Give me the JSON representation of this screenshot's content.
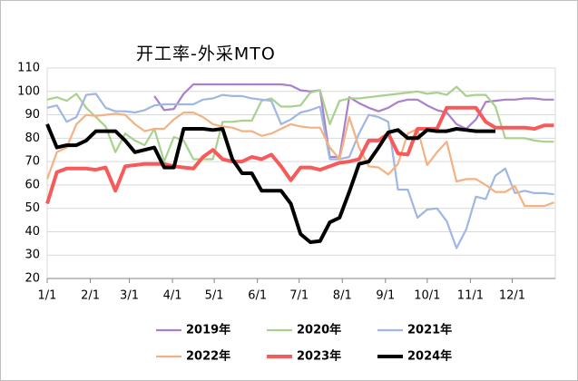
{
  "chart_data": {
    "type": "line",
    "title": "开工率-外采MTO",
    "x": [
      0,
      7,
      14,
      21,
      28,
      35,
      42,
      49,
      56,
      63,
      70,
      77,
      84,
      91,
      98,
      105,
      112,
      119,
      126,
      133,
      140,
      147,
      154,
      161,
      168,
      175,
      182,
      189,
      196,
      203,
      210,
      217,
      224,
      231,
      238,
      245,
      252,
      259,
      266,
      273,
      280,
      287,
      294,
      301,
      308,
      315,
      322,
      329,
      336,
      343,
      350,
      357,
      364
    ],
    "xlim": [
      0,
      365
    ],
    "xticks": [
      {
        "value": 0,
        "label": "1/1"
      },
      {
        "value": 31,
        "label": "2/1"
      },
      {
        "value": 59,
        "label": "3/1"
      },
      {
        "value": 90,
        "label": "4/1"
      },
      {
        "value": 120,
        "label": "5/1"
      },
      {
        "value": 151,
        "label": "6/1"
      },
      {
        "value": 181,
        "label": "7/1"
      },
      {
        "value": 212,
        "label": "8/1"
      },
      {
        "value": 243,
        "label": "9/1"
      },
      {
        "value": 273,
        "label": "10/1"
      },
      {
        "value": 304,
        "label": "11/1"
      },
      {
        "value": 334,
        "label": "12/1"
      }
    ],
    "ylim": [
      20,
      110
    ],
    "yticks": [
      20,
      30,
      40,
      50,
      60,
      70,
      80,
      90,
      100,
      110
    ],
    "series": [
      {
        "name": "2019年",
        "color": "#a980cc",
        "values": [
          null,
          null,
          null,
          null,
          null,
          null,
          null,
          null,
          null,
          null,
          null,
          98,
          92,
          92.5,
          99,
          103,
          103,
          103,
          103,
          103,
          103,
          103,
          103,
          103,
          103,
          102.5,
          100.5,
          100,
          100.5,
          72,
          72,
          97.5,
          95,
          93,
          91.5,
          93,
          95.5,
          96.5,
          96.5,
          94,
          92,
          91,
          86,
          84,
          88,
          95.5,
          96,
          96.5,
          96.5,
          97,
          97,
          96.5,
          96.5
        ]
      },
      {
        "name": "2020年",
        "color": "#a9d18e",
        "values": [
          96.5,
          97.5,
          96,
          99,
          93,
          89,
          85,
          74,
          82,
          79,
          77,
          84,
          70,
          80.5,
          79,
          71,
          71,
          71,
          87,
          87,
          87.5,
          87.5,
          96,
          97,
          93.5,
          93.5,
          94,
          99.5,
          100.5,
          86,
          96,
          97,
          97,
          97.5,
          98,
          98.5,
          99,
          99.5,
          100,
          99,
          99.5,
          98.5,
          102,
          98,
          98.5,
          98.5,
          93.5,
          80,
          80,
          80,
          79,
          78.5,
          78.5
        ]
      },
      {
        "name": "2021年",
        "color": "#9fb7e2",
        "values": [
          93,
          94,
          87,
          89,
          98.5,
          99,
          93,
          91.5,
          91.5,
          91,
          92,
          94,
          94.5,
          94.5,
          94.5,
          94.5,
          96.5,
          97,
          98.5,
          98,
          98,
          97,
          96.5,
          96,
          86,
          88,
          91,
          92,
          93.5,
          71,
          71,
          72,
          82,
          90,
          89,
          87,
          58,
          58,
          46,
          49.5,
          50,
          44.5,
          33,
          41,
          55,
          54,
          64,
          67,
          56.5,
          57.5,
          56.5,
          56.5,
          56
        ]
      },
      {
        "name": "2022年",
        "color": "#f4b183",
        "values": [
          62.5,
          74,
          76,
          86,
          90,
          89.5,
          90,
          90.5,
          90,
          86,
          83,
          84,
          84,
          88,
          91,
          91,
          89,
          86,
          85,
          84.5,
          83,
          83,
          81,
          82,
          84,
          86,
          85,
          84.5,
          84.5,
          76,
          71,
          89,
          76,
          68,
          67.5,
          64.5,
          69,
          82,
          84,
          68.5,
          74,
          78.5,
          61.5,
          62.5,
          62.5,
          60,
          57,
          57,
          59.5,
          51,
          51,
          51,
          52.5
        ]
      },
      {
        "name": "2023年",
        "color": "#f85a5a",
        "values": [
          52,
          65.5,
          67,
          67,
          67,
          66.5,
          67.5,
          57.5,
          68,
          68.5,
          69,
          69,
          69,
          68,
          67.5,
          67,
          72,
          75,
          71,
          70,
          70,
          72,
          71,
          73,
          68,
          62,
          67.5,
          67.5,
          66.5,
          68,
          69.5,
          70,
          71,
          79,
          79,
          82,
          73.5,
          73,
          84,
          84,
          84,
          93,
          93,
          93,
          93,
          87,
          84.5,
          84.5,
          84.5,
          84.5,
          84,
          85.5,
          85.5
        ]
      },
      {
        "name": "2024年",
        "color": "#000000",
        "values": [
          86,
          76,
          77,
          77,
          79,
          83,
          83,
          83,
          79,
          74,
          75,
          76,
          67.5,
          67.5,
          84,
          84,
          84,
          83.5,
          84,
          71,
          65,
          65,
          57.5,
          57.5,
          57.5,
          52,
          39,
          35.5,
          36,
          44,
          46,
          57,
          69,
          70,
          76,
          82.5,
          83.5,
          80,
          80,
          83.5,
          83,
          83,
          84,
          83.5,
          83,
          83,
          83,
          null,
          null,
          null,
          null,
          null,
          null
        ]
      }
    ]
  }
}
